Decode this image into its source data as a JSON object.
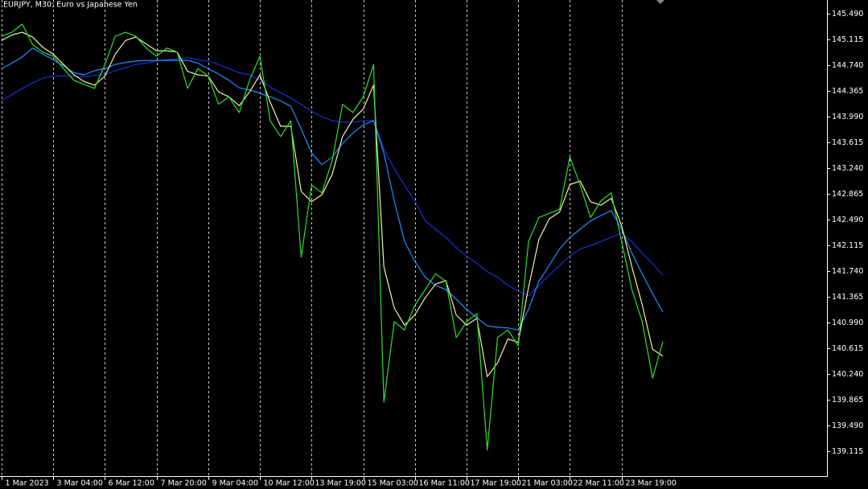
{
  "chart_data": {
    "type": "line",
    "title": "EURJPY, M30:  Euro vs Japanese Yen",
    "ylim": [
      138.75,
      145.69
    ],
    "yticks": [
      {
        "value": 145.49,
        "label": "145.490"
      },
      145.115,
      {
        "value": 144.74,
        "label": "144.740"
      },
      144.365,
      {
        "value": 143.99,
        "label": "143.990"
      },
      143.615,
      {
        "value": 143.24,
        "label": "143.240"
      },
      142.865,
      {
        "value": 142.49,
        "label": "142.490"
      },
      142.115,
      {
        "value": 141.74,
        "label": "141.740"
      },
      141.365,
      {
        "value": 140.99,
        "label": "140.990"
      },
      140.615,
      {
        "value": 140.24,
        "label": "140.240"
      },
      139.865,
      {
        "value": 139.49,
        "label": "139.490"
      },
      139.115
    ],
    "xlim": [
      -0.15,
      79.8
    ],
    "xticks": [
      {
        "value": 0,
        "label": "1 Mar 2023"
      },
      {
        "value": 5,
        "label": "3 Mar 04:00"
      },
      {
        "value": 10,
        "label": "6 Mar 12:00"
      },
      {
        "value": 15,
        "label": "7 Mar 20:00"
      },
      {
        "value": 20,
        "label": "9 Mar 04:00"
      },
      {
        "value": 25,
        "label": "10 Mar 12:00"
      },
      {
        "value": 30,
        "label": "13 Mar 19:00"
      },
      {
        "value": 35,
        "label": "15 Mar 03:00"
      },
      {
        "value": 40,
        "label": "16 Mar 11:00"
      },
      {
        "value": 45,
        "label": "17 Mar 19:00"
      },
      {
        "value": 50,
        "label": "21 Mar 03:00"
      },
      {
        "value": 55,
        "label": "22 Mar 11:00"
      },
      {
        "value": 60,
        "label": "23 Mar 19:00"
      }
    ],
    "grid": "vertical",
    "series": [
      {
        "color": "#2ee02a",
        "values": [
          145.16,
          145.22,
          145.34,
          145.04,
          144.93,
          144.87,
          144.69,
          144.52,
          144.46,
          144.4,
          144.75,
          145.16,
          145.22,
          145.16,
          144.99,
          144.87,
          144.99,
          144.93,
          144.4,
          144.69,
          144.58,
          144.17,
          144.28,
          144.05,
          144.52,
          144.87,
          143.93,
          143.7,
          143.93,
          141.94,
          142.99,
          142.88,
          143.35,
          144.17,
          144.05,
          144.28,
          144.75,
          139.83,
          141.0,
          140.88,
          141.24,
          141.47,
          141.7,
          141.59,
          140.77,
          141.0,
          141.12,
          139.13,
          140.77,
          140.88,
          140.65,
          142.17,
          142.52,
          142.58,
          142.64,
          143.4,
          142.99,
          142.52,
          142.76,
          142.88,
          142.17,
          141.47,
          141.0,
          140.18,
          140.71
        ]
      },
      {
        "color": "#f2f2a0",
        "values": [
          145.1,
          145.18,
          145.22,
          145.15,
          145.0,
          144.9,
          144.75,
          144.6,
          144.5,
          144.45,
          144.58,
          144.9,
          145.1,
          145.15,
          145.05,
          144.95,
          144.95,
          144.93,
          144.65,
          144.6,
          144.58,
          144.35,
          144.28,
          144.15,
          144.35,
          144.6,
          144.2,
          143.85,
          143.85,
          142.9,
          142.75,
          142.85,
          143.15,
          143.7,
          143.95,
          144.1,
          144.45,
          141.8,
          141.2,
          140.95,
          141.1,
          141.35,
          141.55,
          141.6,
          141.1,
          140.95,
          141.05,
          140.2,
          140.4,
          140.75,
          140.7,
          141.5,
          142.2,
          142.5,
          142.6,
          143.0,
          143.05,
          142.75,
          142.7,
          142.8,
          142.4,
          141.8,
          141.25,
          140.6,
          140.5
        ]
      },
      {
        "color": "#1e90ff",
        "values": [
          144.69,
          144.77,
          144.86,
          144.99,
          144.9,
          144.82,
          144.73,
          144.63,
          144.6,
          144.66,
          144.69,
          144.75,
          144.78,
          144.8,
          144.81,
          144.81,
          144.81,
          144.81,
          144.81,
          144.77,
          144.69,
          144.61,
          144.52,
          144.41,
          144.38,
          144.33,
          144.28,
          144.22,
          144.14,
          143.81,
          143.46,
          143.29,
          143.4,
          143.6,
          143.75,
          143.87,
          143.93,
          143.46,
          142.76,
          142.17,
          141.88,
          141.65,
          141.53,
          141.47,
          141.33,
          141.18,
          141.06,
          140.94,
          140.92,
          140.91,
          140.88,
          141.18,
          141.59,
          141.82,
          142.06,
          142.23,
          142.35,
          142.47,
          142.55,
          142.62,
          142.35,
          142.0,
          141.7,
          141.41,
          141.14
        ]
      },
      {
        "color": "#1f2fd0",
        "values": [
          144.22,
          144.31,
          144.4,
          144.48,
          144.55,
          144.58,
          144.58,
          144.58,
          144.57,
          144.59,
          144.6,
          144.66,
          144.7,
          144.75,
          144.77,
          144.8,
          144.82,
          144.83,
          144.85,
          144.82,
          144.8,
          144.75,
          144.69,
          144.63,
          144.6,
          144.52,
          144.42,
          144.34,
          144.26,
          144.17,
          144.07,
          143.99,
          143.93,
          143.91,
          143.91,
          143.93,
          143.93,
          143.52,
          143.23,
          142.99,
          142.76,
          142.47,
          142.35,
          142.23,
          142.08,
          141.96,
          141.85,
          141.73,
          141.65,
          141.53,
          141.45,
          141.38,
          141.53,
          141.68,
          141.82,
          141.96,
          142.06,
          142.11,
          142.17,
          142.23,
          142.29,
          142.17,
          142.0,
          141.85,
          141.68
        ]
      }
    ]
  }
}
